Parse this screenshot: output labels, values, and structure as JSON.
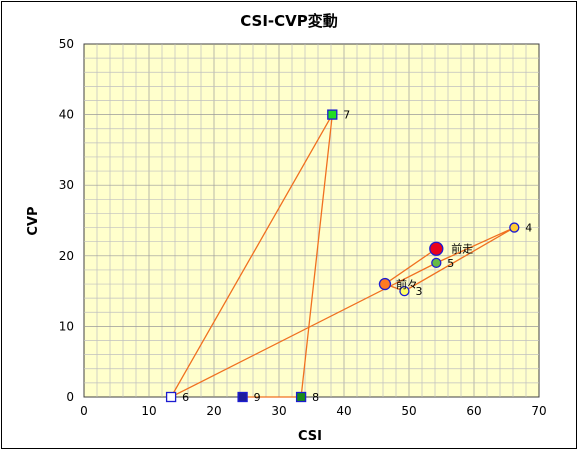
{
  "chart_data": {
    "type": "scatter",
    "title": "CSI-CVP変動",
    "xlabel": "CSI",
    "ylabel": "CVP",
    "xlim": [
      0,
      70
    ],
    "ylim": [
      0,
      50
    ],
    "xticks": [
      0,
      10,
      20,
      30,
      40,
      50,
      60,
      70
    ],
    "yticks": [
      0,
      10,
      20,
      30,
      40,
      50
    ],
    "grid": true,
    "colors": {
      "plot_bg": "#ffffcc",
      "grid": "#bfbfbf",
      "line": "#f07020"
    },
    "path_order": [
      "前走",
      "前々",
      "3",
      "4",
      "5",
      "6",
      "7",
      "8",
      "9"
    ],
    "points": [
      {
        "label": "前走",
        "x": 54.2,
        "y": 21.0,
        "shape": "circle-large",
        "fill": "#e8001c",
        "stroke": "#1c1cd0"
      },
      {
        "label": "前々",
        "x": 46.3,
        "y": 16.0,
        "shape": "circle-medium",
        "fill": "#ff7a22",
        "stroke": "#1c1cd0"
      },
      {
        "label": "3",
        "x": 49.3,
        "y": 15.0,
        "shape": "circle",
        "fill": "#ffff66",
        "stroke": "#1c1cd0"
      },
      {
        "label": "4",
        "x": 66.2,
        "y": 24.0,
        "shape": "circle",
        "fill": "#ffcc33",
        "stroke": "#1c1cd0"
      },
      {
        "label": "5",
        "x": 54.2,
        "y": 19.0,
        "shape": "circle",
        "fill": "#66bb44",
        "stroke": "#1c1cd0"
      },
      {
        "label": "6",
        "x": 13.4,
        "y": 0.0,
        "shape": "square",
        "fill": "#ffffff",
        "stroke": "#1c1cd0"
      },
      {
        "label": "7",
        "x": 38.2,
        "y": 40.0,
        "shape": "square",
        "fill": "#22dd22",
        "stroke": "#1c1cd0"
      },
      {
        "label": "8",
        "x": 33.4,
        "y": 0.0,
        "shape": "square",
        "fill": "#1a8a1a",
        "stroke": "#1c1cd0"
      },
      {
        "label": "9",
        "x": 24.4,
        "y": 0.0,
        "shape": "square",
        "fill": "#1c1c9c",
        "stroke": "#1c1cd0"
      }
    ]
  }
}
